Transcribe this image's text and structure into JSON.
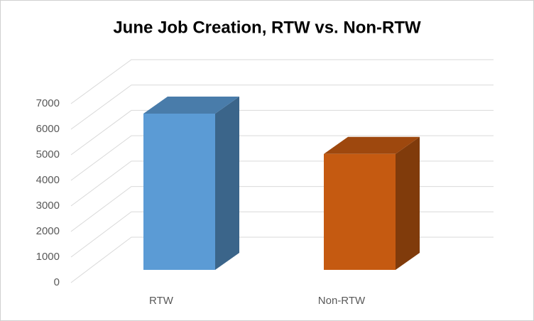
{
  "chart_data": {
    "type": "bar3d",
    "title": "June Job Creation, RTW vs. Non-RTW",
    "categories": [
      "RTW",
      "Non-RTW"
    ],
    "values": [
      6160,
      4570
    ],
    "colors": [
      "#5b9bd5",
      "#c55a11"
    ],
    "ylim": [
      0,
      7000
    ],
    "yticks": [
      0,
      1000,
      2000,
      3000,
      4000,
      5000,
      6000,
      7000
    ],
    "grid": true
  }
}
